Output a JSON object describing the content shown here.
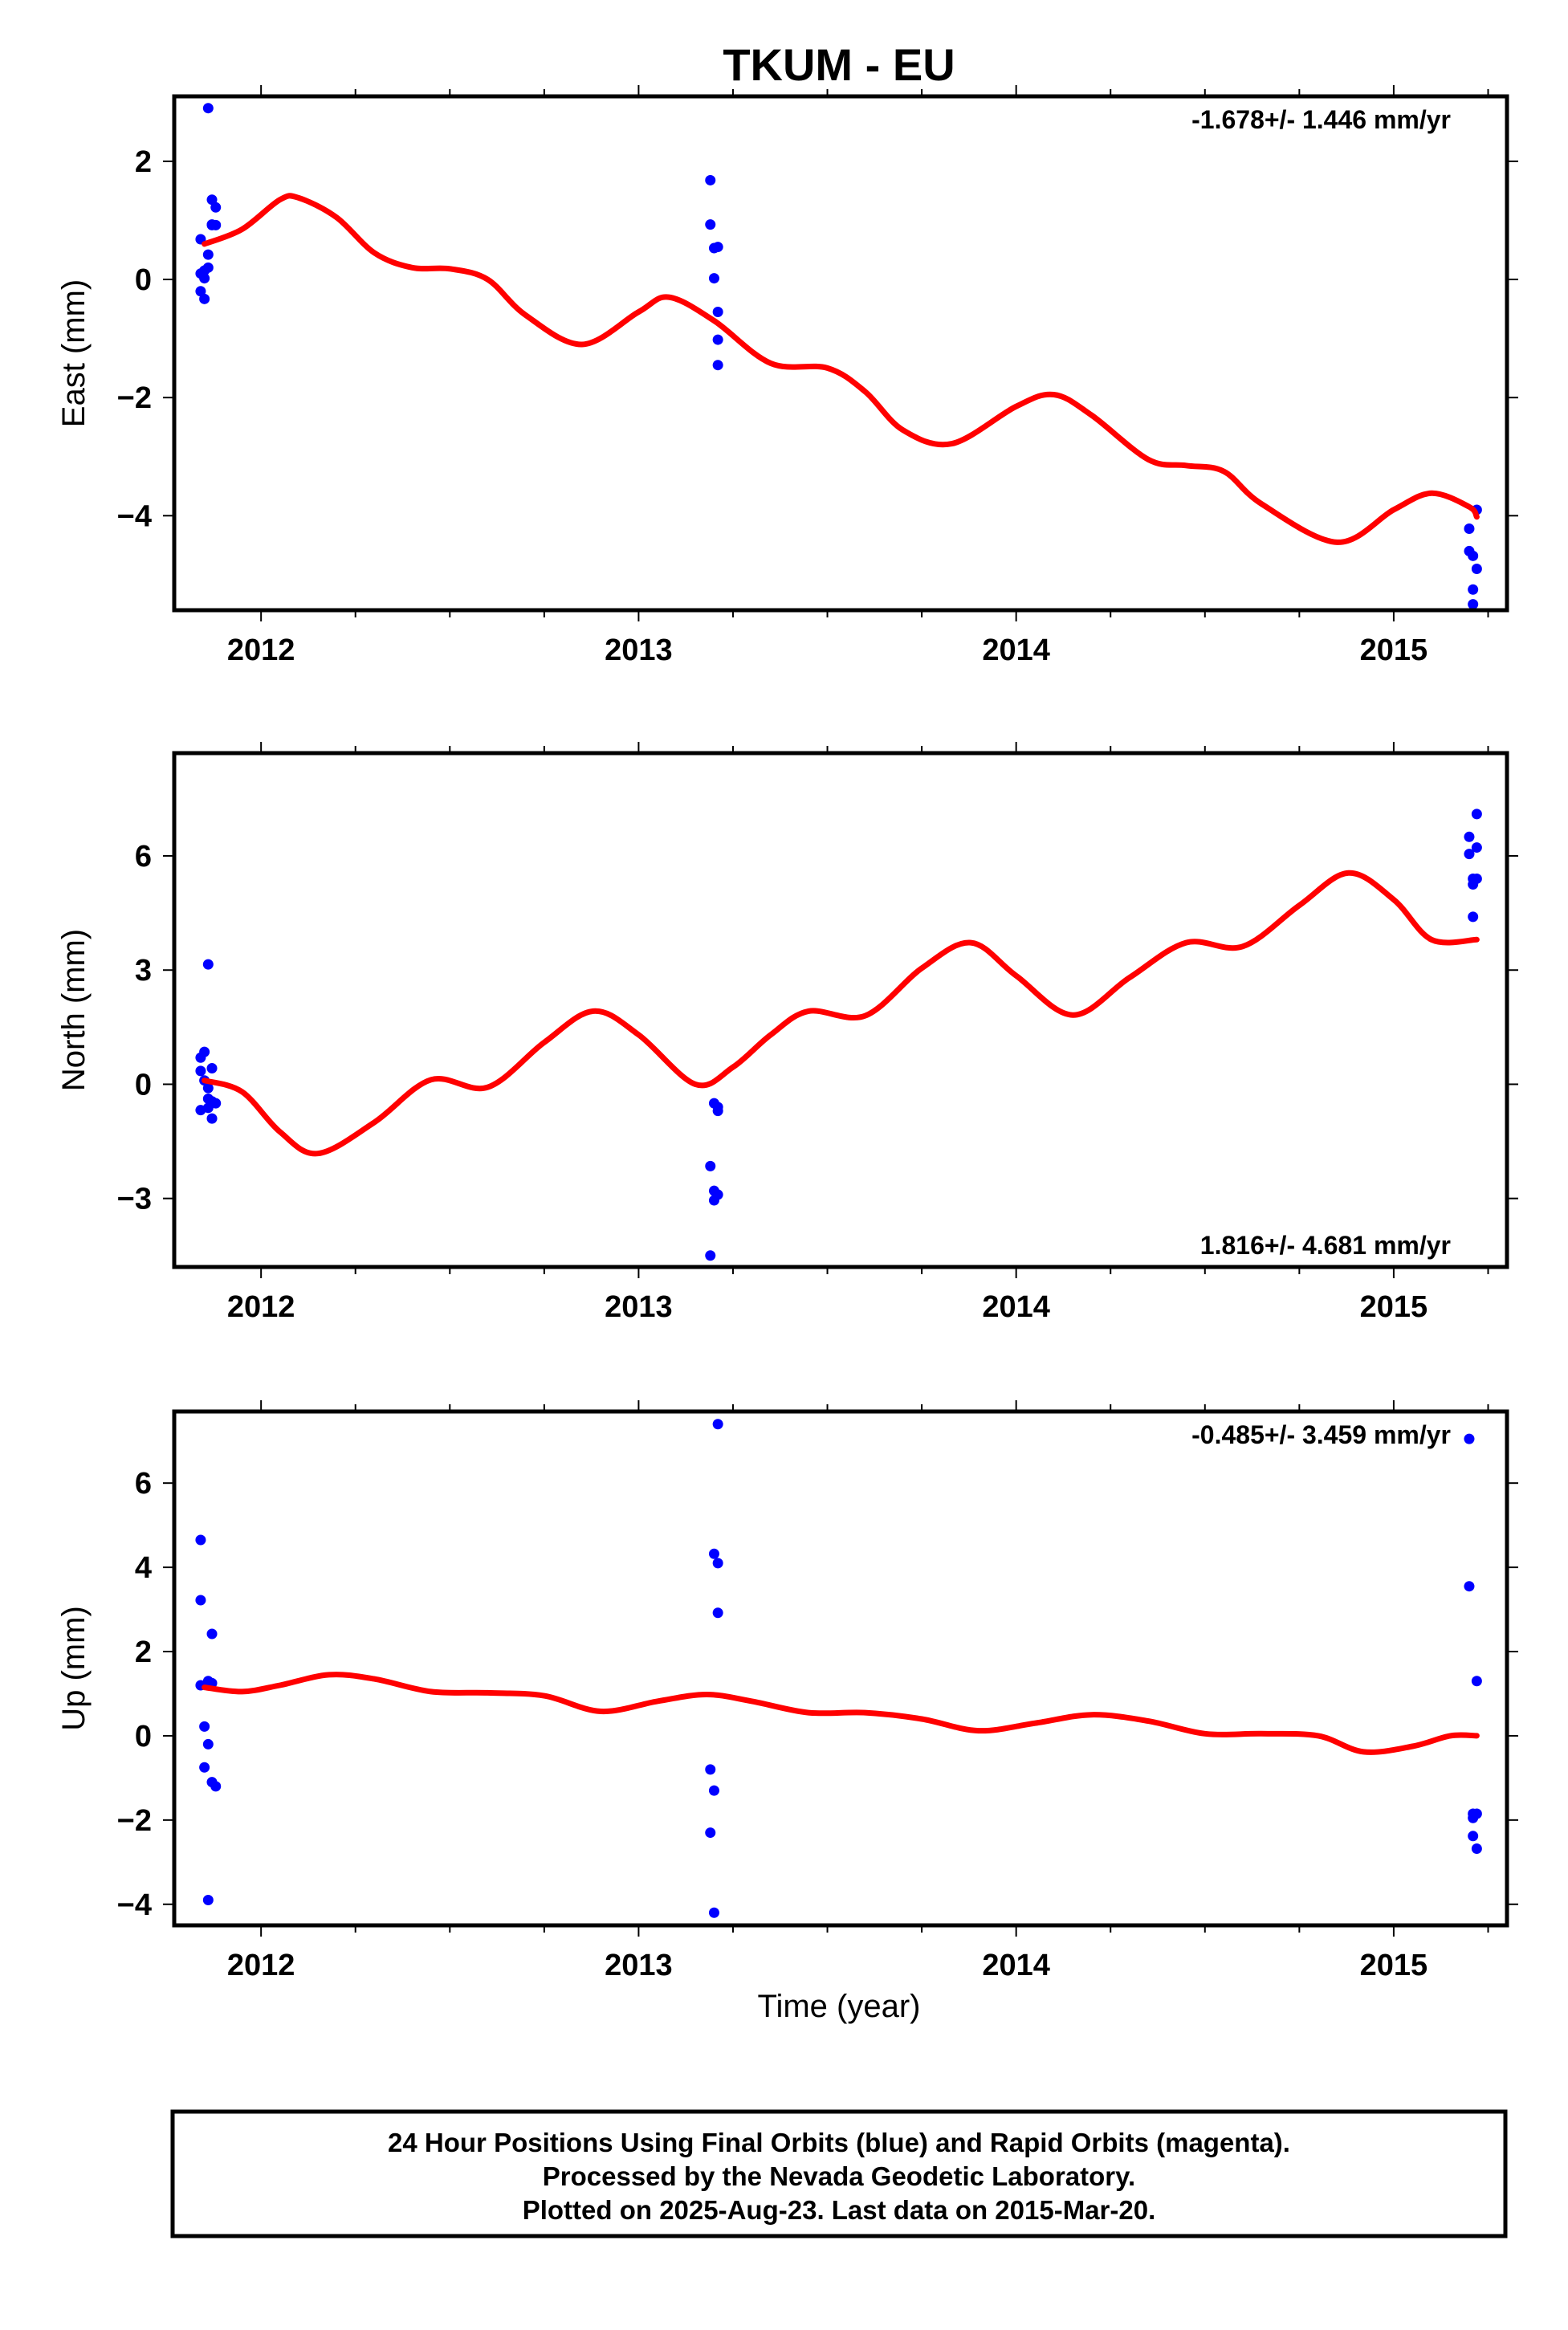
{
  "title": "TKUM - EU",
  "xlabel": "Time (year)",
  "footer": {
    "line1": "24 Hour Positions Using Final Orbits (blue) and Rapid Orbits (magenta).",
    "line2": "Processed by the Nevada Geodetic Laboratory.",
    "line3": "Plotted on 2025-Aug-23. Last data on 2015-Mar-20."
  },
  "colors": {
    "data_points": "#0000ff",
    "model_curve": "#ff0000",
    "axes": "#000000"
  },
  "chart_data": [
    {
      "type": "scatter",
      "ylabel": "East (mm)",
      "rate_text": "-1.678+/- 1.446 mm/yr",
      "rate_position": "top-right",
      "xlim": [
        2011.77,
        2015.3
      ],
      "ylim": [
        -5.6,
        3.1
      ],
      "xticks": [
        2012,
        2013,
        2014,
        2015
      ],
      "xtick_labels": [
        "2012",
        "2013",
        "2014",
        "2015"
      ],
      "yticks": [
        -4,
        -2,
        0,
        2
      ],
      "ytick_labels": [
        "−4",
        "−2",
        "0",
        "2"
      ],
      "points": {
        "x": [
          2011.84,
          2011.84,
          2011.84,
          2011.85,
          2011.85,
          2011.85,
          2011.86,
          2011.86,
          2011.86,
          2011.87,
          2011.87,
          2011.87,
          2011.88,
          2011.88,
          2013.19,
          2013.19,
          2013.2,
          2013.2,
          2013.21,
          2013.21,
          2013.21,
          2013.21,
          2015.2,
          2015.2,
          2015.21,
          2015.21,
          2015.21,
          2015.22,
          2015.22
        ],
        "y": [
          0.68,
          -0.2,
          0.1,
          -0.33,
          0.02,
          0.15,
          2.9,
          0.2,
          0.42,
          0.92,
          0.93,
          1.35,
          1.22,
          0.92,
          1.68,
          0.93,
          0.53,
          0.02,
          0.55,
          -0.55,
          -1.02,
          -1.45,
          -4.22,
          -4.6,
          -4.68,
          -5.25,
          -5.5,
          -4.9,
          -3.9
        ]
      },
      "model": {
        "x": [
          2011.85,
          2011.95,
          2012.05,
          2012.1,
          2012.2,
          2012.3,
          2012.4,
          2012.5,
          2012.6,
          2012.7,
          2012.85,
          2013.0,
          2013.08,
          2013.2,
          2013.35,
          2013.5,
          2013.6,
          2013.7,
          2013.83,
          2014.0,
          2014.1,
          2014.2,
          2014.35,
          2014.45,
          2014.55,
          2014.65,
          2014.85,
          2015.0,
          2015.1,
          2015.2,
          2015.22
        ],
        "y": [
          0.6,
          0.85,
          1.35,
          1.38,
          1.05,
          0.45,
          0.2,
          0.18,
          0.0,
          -0.6,
          -1.1,
          -0.55,
          -0.3,
          -0.7,
          -1.42,
          -1.5,
          -1.9,
          -2.55,
          -2.78,
          -2.15,
          -1.95,
          -2.3,
          -3.05,
          -3.15,
          -3.25,
          -3.8,
          -4.45,
          -3.9,
          -3.62,
          -3.85,
          -4.02
        ]
      }
    },
    {
      "type": "scatter",
      "ylabel": "North (mm)",
      "rate_text": "1.816+/- 4.681 mm/yr",
      "rate_position": "bottom-right",
      "xlim": [
        2011.77,
        2015.3
      ],
      "ylim": [
        -4.8,
        8.7
      ],
      "xticks": [
        2012,
        2013,
        2014,
        2015
      ],
      "xtick_labels": [
        "2012",
        "2013",
        "2014",
        "2015"
      ],
      "yticks": [
        -3,
        0,
        3,
        6
      ],
      "ytick_labels": [
        "−3",
        "0",
        "3",
        "6"
      ],
      "points": {
        "x": [
          2011.84,
          2011.84,
          2011.84,
          2011.85,
          2011.85,
          2011.86,
          2011.86,
          2011.86,
          2011.86,
          2011.87,
          2011.87,
          2011.87,
          2011.88,
          2013.19,
          2013.19,
          2013.2,
          2013.2,
          2013.2,
          2013.21,
          2013.21,
          2013.21,
          2015.2,
          2015.2,
          2015.21,
          2015.21,
          2015.21,
          2015.22,
          2015.22,
          2015.22
        ],
        "y": [
          0.7,
          0.35,
          -0.68,
          0.85,
          0.1,
          3.15,
          -0.62,
          -0.1,
          -0.38,
          0.42,
          -0.45,
          -0.9,
          -0.5,
          -4.5,
          -2.15,
          -2.8,
          -3.05,
          -0.5,
          -0.7,
          -0.6,
          -2.9,
          6.5,
          6.05,
          5.25,
          5.4,
          4.4,
          6.22,
          7.1,
          5.4
        ]
      },
      "model": {
        "x": [
          2011.85,
          2011.95,
          2012.05,
          2012.15,
          2012.3,
          2012.45,
          2012.6,
          2012.75,
          2012.88,
          2013.0,
          2013.15,
          2013.25,
          2013.35,
          2013.45,
          2013.6,
          2013.75,
          2013.88,
          2014.0,
          2014.15,
          2014.3,
          2014.45,
          2014.6,
          2014.75,
          2014.88,
          2015.0,
          2015.1,
          2015.22
        ],
        "y": [
          0.1,
          -0.2,
          -1.25,
          -1.82,
          -1.0,
          0.12,
          -0.08,
          1.1,
          1.92,
          1.3,
          0.0,
          0.45,
          1.3,
          1.92,
          1.8,
          3.05,
          3.72,
          2.85,
          1.82,
          2.8,
          3.72,
          3.62,
          4.7,
          5.55,
          4.85,
          3.8,
          3.8
        ]
      }
    },
    {
      "type": "scatter",
      "ylabel": "Up (mm)",
      "rate_text": "-0.485+/- 3.459 mm/yr",
      "rate_position": "top-right",
      "xlim": [
        2011.77,
        2015.3
      ],
      "ylim": [
        -4.5,
        7.7
      ],
      "xticks": [
        2012,
        2013,
        2014,
        2015
      ],
      "xtick_labels": [
        "2012",
        "2013",
        "2014",
        "2015"
      ],
      "yticks": [
        -4,
        -2,
        0,
        2,
        4,
        6
      ],
      "ytick_labels": [
        "−4",
        "−2",
        "0",
        "2",
        "4",
        "6"
      ],
      "points": {
        "x": [
          2011.84,
          2011.84,
          2011.84,
          2011.85,
          2011.85,
          2011.86,
          2011.86,
          2011.86,
          2011.87,
          2011.87,
          2011.87,
          2011.88,
          2013.19,
          2013.19,
          2013.2,
          2013.2,
          2013.2,
          2013.21,
          2013.21,
          2013.21,
          2015.2,
          2015.2,
          2015.21,
          2015.21,
          2015.21,
          2015.22,
          2015.22,
          2015.22
        ],
        "y": [
          4.65,
          3.22,
          1.2,
          0.22,
          -0.75,
          -0.2,
          1.3,
          -3.9,
          2.42,
          1.25,
          -1.1,
          -1.2,
          -0.8,
          -2.3,
          -1.3,
          -4.2,
          4.32,
          7.4,
          4.1,
          2.92,
          7.05,
          3.55,
          -1.95,
          -2.38,
          -1.85,
          -2.68,
          1.3,
          -1.85
        ]
      },
      "model": {
        "x": [
          2011.85,
          2011.95,
          2012.05,
          2012.18,
          2012.3,
          2012.45,
          2012.6,
          2012.75,
          2012.9,
          2013.05,
          2013.18,
          2013.3,
          2013.45,
          2013.6,
          2013.75,
          2013.9,
          2014.05,
          2014.2,
          2014.35,
          2014.5,
          2014.65,
          2014.8,
          2014.92,
          2015.05,
          2015.15,
          2015.22
        ],
        "y": [
          1.15,
          1.05,
          1.2,
          1.45,
          1.35,
          1.05,
          1.02,
          0.95,
          0.58,
          0.82,
          0.98,
          0.82,
          0.55,
          0.55,
          0.4,
          0.12,
          0.3,
          0.5,
          0.35,
          0.05,
          0.05,
          0.0,
          -0.38,
          -0.25,
          0.0,
          0.0
        ]
      }
    }
  ]
}
